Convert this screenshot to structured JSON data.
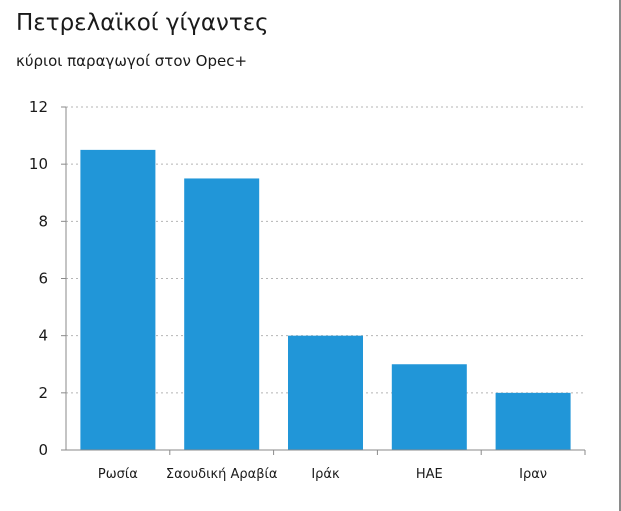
{
  "chart_data": {
    "type": "bar",
    "title": "Πετρελαϊκοί γίγαντες",
    "subtitle": "κύριοι παραγωγοί στον Opec+",
    "xlabel": "",
    "ylabel": "",
    "categories": [
      "Ρωσία",
      "Σαουδική Αραβία",
      "Ιράκ",
      "ΗΑΕ",
      "Ιραν"
    ],
    "values": [
      10.5,
      9.5,
      4,
      3,
      2
    ],
    "ylim": [
      0,
      12
    ],
    "yticks": [
      "0",
      "2",
      "4",
      "6",
      "8",
      "10",
      "12"
    ],
    "grid": true,
    "bar_color": "#2196d8",
    "axis_color": "#8a8a8a",
    "grid_color": "#b5b5b5"
  }
}
